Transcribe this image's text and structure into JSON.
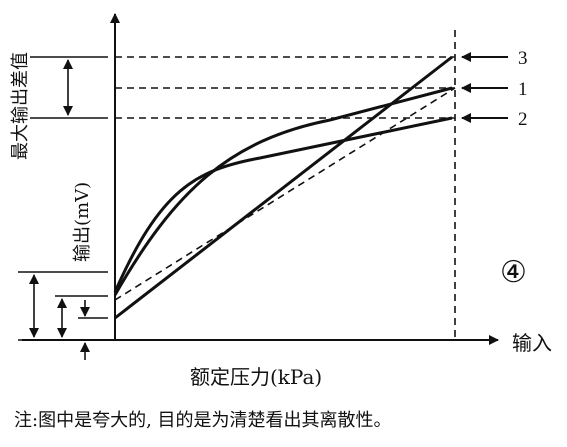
{
  "y_label_top": "最大输出差值",
  "y_label": "输出(mV)",
  "x_axis_end_label": "输入",
  "x_label": "额定压力(kPa)",
  "markers": [
    "3",
    "1",
    "2"
  ],
  "figure_number": "④",
  "note": "注:图中是夸大的, 目的是为清楚看出其离散性。"
}
